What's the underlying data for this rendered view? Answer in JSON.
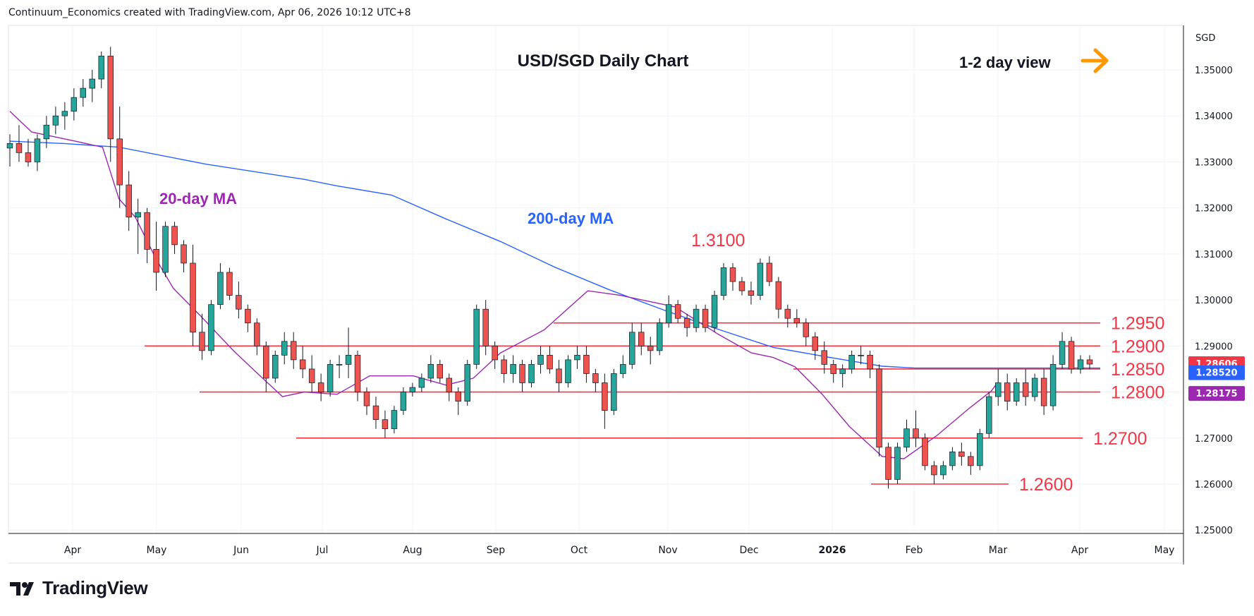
{
  "header": {
    "attribution": "Continuum_Economics created with TradingView.com, Apr 06, 2026 10:12 UTC+8"
  },
  "branding": {
    "name": "TradingView"
  },
  "chart_data": {
    "type": "candlestick",
    "title": "USD/SGD Daily Chart",
    "view_label": "1-2 day view",
    "currency": "SGD",
    "ylim": [
      1.25,
      1.36
    ],
    "yticks": [
      "1.35000",
      "1.34000",
      "1.33000",
      "1.32000",
      "1.31000",
      "1.30000",
      "1.29000",
      "1.28000",
      "1.27000",
      "1.26000",
      "1.25000"
    ],
    "xticks": [
      "Apr",
      "May",
      "Jun",
      "Jul",
      "Aug",
      "Sep",
      "Oct",
      "Nov",
      "Dec",
      "2026",
      "Feb",
      "Mar",
      "Apr",
      "May"
    ],
    "levels": [
      {
        "label": "1.2950",
        "value": 1.295,
        "start": "Sep 20"
      },
      {
        "label": "1.2900",
        "value": 1.29,
        "start": "Apr 25"
      },
      {
        "label": "1.2850",
        "value": 1.285,
        "start": "Dec 10"
      },
      {
        "label": "1.2800",
        "value": 1.28,
        "start": "May 20"
      },
      {
        "label": "1.2700",
        "value": 1.27,
        "start": "Jun 15"
      },
      {
        "label": "1.2600",
        "value": 1.26,
        "start": "Jan 20"
      }
    ],
    "annotations": [
      {
        "label": "1.3100",
        "near": "Nov high"
      },
      {
        "label": "20-day MA"
      },
      {
        "label": "200-day MA"
      }
    ],
    "price_tags": [
      {
        "label": "1.28606",
        "series": "Close"
      },
      {
        "label": "1.28520",
        "series": "200-day MA"
      },
      {
        "label": "1.28175",
        "series": "20-day MA"
      }
    ],
    "series": [
      {
        "name": "200-day MA",
        "color": "#2962ff",
        "points": [
          [
            1.3345,
            0
          ],
          [
            1.334,
            0.05
          ],
          [
            1.3332,
            0.1
          ],
          [
            1.3295,
            0.18
          ],
          [
            1.3262,
            0.27
          ],
          [
            1.3248,
            0.3
          ],
          [
            1.3228,
            0.35
          ],
          [
            1.3176,
            0.4
          ],
          [
            1.3127,
            0.45
          ],
          [
            1.3071,
            0.5
          ],
          [
            1.3022,
            0.55
          ],
          [
            1.2978,
            0.6
          ],
          [
            1.2936,
            0.65
          ],
          [
            1.2897,
            0.7
          ],
          [
            1.2876,
            0.75
          ],
          [
            1.2856,
            0.8
          ],
          [
            1.2852,
            0.83
          ],
          [
            1.2852,
            1.0
          ]
        ]
      },
      {
        "name": "20-day MA",
        "color": "#9c27b0",
        "points": [
          [
            1.341,
            0
          ],
          [
            1.3365,
            0.02
          ],
          [
            1.3345,
            0.06
          ],
          [
            1.3332,
            0.085
          ],
          [
            1.322,
            0.1
          ],
          [
            1.318,
            0.115
          ],
          [
            1.3085,
            0.135
          ],
          [
            1.3025,
            0.15
          ],
          [
            1.2965,
            0.175
          ],
          [
            1.289,
            0.205
          ],
          [
            1.2845,
            0.225
          ],
          [
            1.279,
            0.25
          ],
          [
            1.28,
            0.27
          ],
          [
            1.2795,
            0.3
          ],
          [
            1.2835,
            0.33
          ],
          [
            1.2835,
            0.37
          ],
          [
            1.2815,
            0.4
          ],
          [
            1.283,
            0.425
          ],
          [
            1.2885,
            0.45
          ],
          [
            1.2935,
            0.49
          ],
          [
            1.302,
            0.53
          ],
          [
            1.301,
            0.56
          ],
          [
            1.2985,
            0.61
          ],
          [
            1.2925,
            0.65
          ],
          [
            1.2885,
            0.68
          ],
          [
            1.2875,
            0.7
          ],
          [
            1.2855,
            0.72
          ],
          [
            1.2795,
            0.745
          ],
          [
            1.2725,
            0.77
          ],
          [
            1.266,
            0.8
          ],
          [
            1.2655,
            0.82
          ],
          [
            1.2705,
            0.85
          ],
          [
            1.2765,
            0.88
          ],
          [
            1.2802,
            0.9
          ],
          [
            1.28175,
            0.905
          ]
        ]
      }
    ],
    "candles": [
      [
        1.333,
        1.336,
        1.329,
        1.334
      ],
      [
        1.334,
        1.338,
        1.33,
        1.332
      ],
      [
        1.332,
        1.335,
        1.329,
        1.33
      ],
      [
        1.33,
        1.336,
        1.328,
        1.335
      ],
      [
        1.335,
        1.34,
        1.333,
        1.338
      ],
      [
        1.338,
        1.342,
        1.336,
        1.34
      ],
      [
        1.34,
        1.343,
        1.337,
        1.341
      ],
      [
        1.341,
        1.346,
        1.339,
        1.344
      ],
      [
        1.344,
        1.348,
        1.342,
        1.346
      ],
      [
        1.346,
        1.35,
        1.343,
        1.348
      ],
      [
        1.348,
        1.354,
        1.346,
        1.353
      ],
      [
        1.353,
        1.355,
        1.33,
        1.335
      ],
      [
        1.335,
        1.342,
        1.32,
        1.325
      ],
      [
        1.325,
        1.328,
        1.315,
        1.318
      ],
      [
        1.318,
        1.322,
        1.31,
        1.319
      ],
      [
        1.319,
        1.32,
        1.308,
        1.311
      ],
      [
        1.311,
        1.317,
        1.302,
        1.306
      ],
      [
        1.306,
        1.317,
        1.305,
        1.316
      ],
      [
        1.316,
        1.317,
        1.31,
        1.312
      ],
      [
        1.312,
        1.313,
        1.306,
        1.308
      ],
      [
        1.308,
        1.312,
        1.29,
        1.293
      ],
      [
        1.293,
        1.297,
        1.287,
        1.289
      ],
      [
        1.289,
        1.3,
        1.288,
        1.299
      ],
      [
        1.299,
        1.308,
        1.298,
        1.306
      ],
      [
        1.306,
        1.307,
        1.3,
        1.301
      ],
      [
        1.301,
        1.304,
        1.296,
        1.298
      ],
      [
        1.298,
        1.299,
        1.293,
        1.295
      ],
      [
        1.295,
        1.296,
        1.288,
        1.29
      ],
      [
        1.29,
        1.291,
        1.28,
        1.283
      ],
      [
        1.283,
        1.289,
        1.282,
        1.288
      ],
      [
        1.288,
        1.293,
        1.286,
        1.291
      ],
      [
        1.291,
        1.293,
        1.285,
        1.287
      ],
      [
        1.287,
        1.29,
        1.283,
        1.285
      ],
      [
        1.285,
        1.288,
        1.28,
        1.282
      ],
      [
        1.282,
        1.284,
        1.278,
        1.28
      ],
      [
        1.28,
        1.287,
        1.279,
        1.286
      ],
      [
        1.286,
        1.288,
        1.283,
        1.286
      ],
      [
        1.286,
        1.294,
        1.283,
        1.288
      ],
      [
        1.288,
        1.289,
        1.278,
        1.28
      ],
      [
        1.28,
        1.281,
        1.275,
        1.277
      ],
      [
        1.277,
        1.279,
        1.272,
        1.274
      ],
      [
        1.274,
        1.276,
        1.27,
        1.272
      ],
      [
        1.272,
        1.277,
        1.271,
        1.276
      ],
      [
        1.276,
        1.281,
        1.275,
        1.28
      ],
      [
        1.28,
        1.282,
        1.279,
        1.281
      ],
      [
        1.281,
        1.284,
        1.28,
        1.283
      ],
      [
        1.283,
        1.288,
        1.282,
        1.286
      ],
      [
        1.286,
        1.287,
        1.282,
        1.283
      ],
      [
        1.283,
        1.284,
        1.278,
        1.28
      ],
      [
        1.28,
        1.281,
        1.275,
        1.278
      ],
      [
        1.278,
        1.287,
        1.277,
        1.286
      ],
      [
        1.286,
        1.299,
        1.285,
        1.298
      ],
      [
        1.298,
        1.3,
        1.288,
        1.29
      ],
      [
        1.29,
        1.291,
        1.285,
        1.287
      ],
      [
        1.287,
        1.288,
        1.282,
        1.284
      ],
      [
        1.284,
        1.288,
        1.282,
        1.286
      ],
      [
        1.286,
        1.287,
        1.28,
        1.282
      ],
      [
        1.282,
        1.287,
        1.281,
        1.286
      ],
      [
        1.286,
        1.29,
        1.284,
        1.288
      ],
      [
        1.288,
        1.29,
        1.284,
        1.285
      ],
      [
        1.285,
        1.287,
        1.28,
        1.282
      ],
      [
        1.282,
        1.288,
        1.281,
        1.287
      ],
      [
        1.287,
        1.29,
        1.285,
        1.288
      ],
      [
        1.288,
        1.29,
        1.282,
        1.284
      ],
      [
        1.284,
        1.285,
        1.28,
        1.282
      ],
      [
        1.282,
        1.284,
        1.272,
        1.276
      ],
      [
        1.276,
        1.285,
        1.275,
        1.284
      ],
      [
        1.284,
        1.288,
        1.283,
        1.286
      ],
      [
        1.286,
        1.295,
        1.285,
        1.293
      ],
      [
        1.293,
        1.295,
        1.288,
        1.29
      ],
      [
        1.29,
        1.292,
        1.286,
        1.289
      ],
      [
        1.289,
        1.296,
        1.288,
        1.295
      ],
      [
        1.295,
        1.301,
        1.294,
        1.299
      ],
      [
        1.299,
        1.3,
        1.295,
        1.296
      ],
      [
        1.296,
        1.297,
        1.292,
        1.294
      ],
      [
        1.294,
        1.299,
        1.293,
        1.298
      ],
      [
        1.298,
        1.299,
        1.293,
        1.294
      ],
      [
        1.294,
        1.302,
        1.293,
        1.301
      ],
      [
        1.301,
        1.308,
        1.3,
        1.307
      ],
      [
        1.307,
        1.308,
        1.302,
        1.304
      ],
      [
        1.304,
        1.305,
        1.301,
        1.302
      ],
      [
        1.302,
        1.304,
        1.299,
        1.301
      ],
      [
        1.301,
        1.309,
        1.3,
        1.308
      ],
      [
        1.308,
        1.3095,
        1.303,
        1.304
      ],
      [
        1.304,
        1.305,
        1.296,
        1.298
      ],
      [
        1.298,
        1.299,
        1.294,
        1.296
      ],
      [
        1.296,
        1.298,
        1.294,
        1.295
      ],
      [
        1.295,
        1.296,
        1.29,
        1.292
      ],
      [
        1.292,
        1.293,
        1.287,
        1.289
      ],
      [
        1.289,
        1.291,
        1.284,
        1.286
      ],
      [
        1.286,
        1.287,
        1.282,
        1.284
      ],
      [
        1.284,
        1.286,
        1.281,
        1.285
      ],
      [
        1.285,
        1.289,
        1.284,
        1.288
      ],
      [
        1.288,
        1.29,
        1.286,
        1.288
      ],
      [
        1.288,
        1.289,
        1.283,
        1.285
      ],
      [
        1.285,
        1.286,
        1.266,
        1.268
      ],
      [
        1.268,
        1.269,
        1.259,
        1.261
      ],
      [
        1.261,
        1.269,
        1.26,
        1.268
      ],
      [
        1.268,
        1.274,
        1.267,
        1.272
      ],
      [
        1.272,
        1.276,
        1.268,
        1.27
      ],
      [
        1.27,
        1.271,
        1.263,
        1.264
      ],
      [
        1.264,
        1.265,
        1.26,
        1.262
      ],
      [
        1.262,
        1.265,
        1.261,
        1.264
      ],
      [
        1.264,
        1.268,
        1.263,
        1.267
      ],
      [
        1.267,
        1.269,
        1.264,
        1.266
      ],
      [
        1.266,
        1.267,
        1.262,
        1.264
      ],
      [
        1.264,
        1.272,
        1.263,
        1.271
      ],
      [
        1.271,
        1.28,
        1.27,
        1.279
      ],
      [
        1.279,
        1.285,
        1.277,
        1.282
      ],
      [
        1.282,
        1.284,
        1.276,
        1.278
      ],
      [
        1.278,
        1.283,
        1.277,
        1.282
      ],
      [
        1.282,
        1.285,
        1.277,
        1.279
      ],
      [
        1.279,
        1.284,
        1.278,
        1.283
      ],
      [
        1.283,
        1.285,
        1.275,
        1.277
      ],
      [
        1.277,
        1.288,
        1.276,
        1.286
      ],
      [
        1.286,
        1.293,
        1.285,
        1.291
      ],
      [
        1.291,
        1.292,
        1.284,
        1.285
      ],
      [
        1.285,
        1.288,
        1.284,
        1.287
      ],
      [
        1.287,
        1.288,
        1.285,
        1.28606
      ]
    ]
  }
}
